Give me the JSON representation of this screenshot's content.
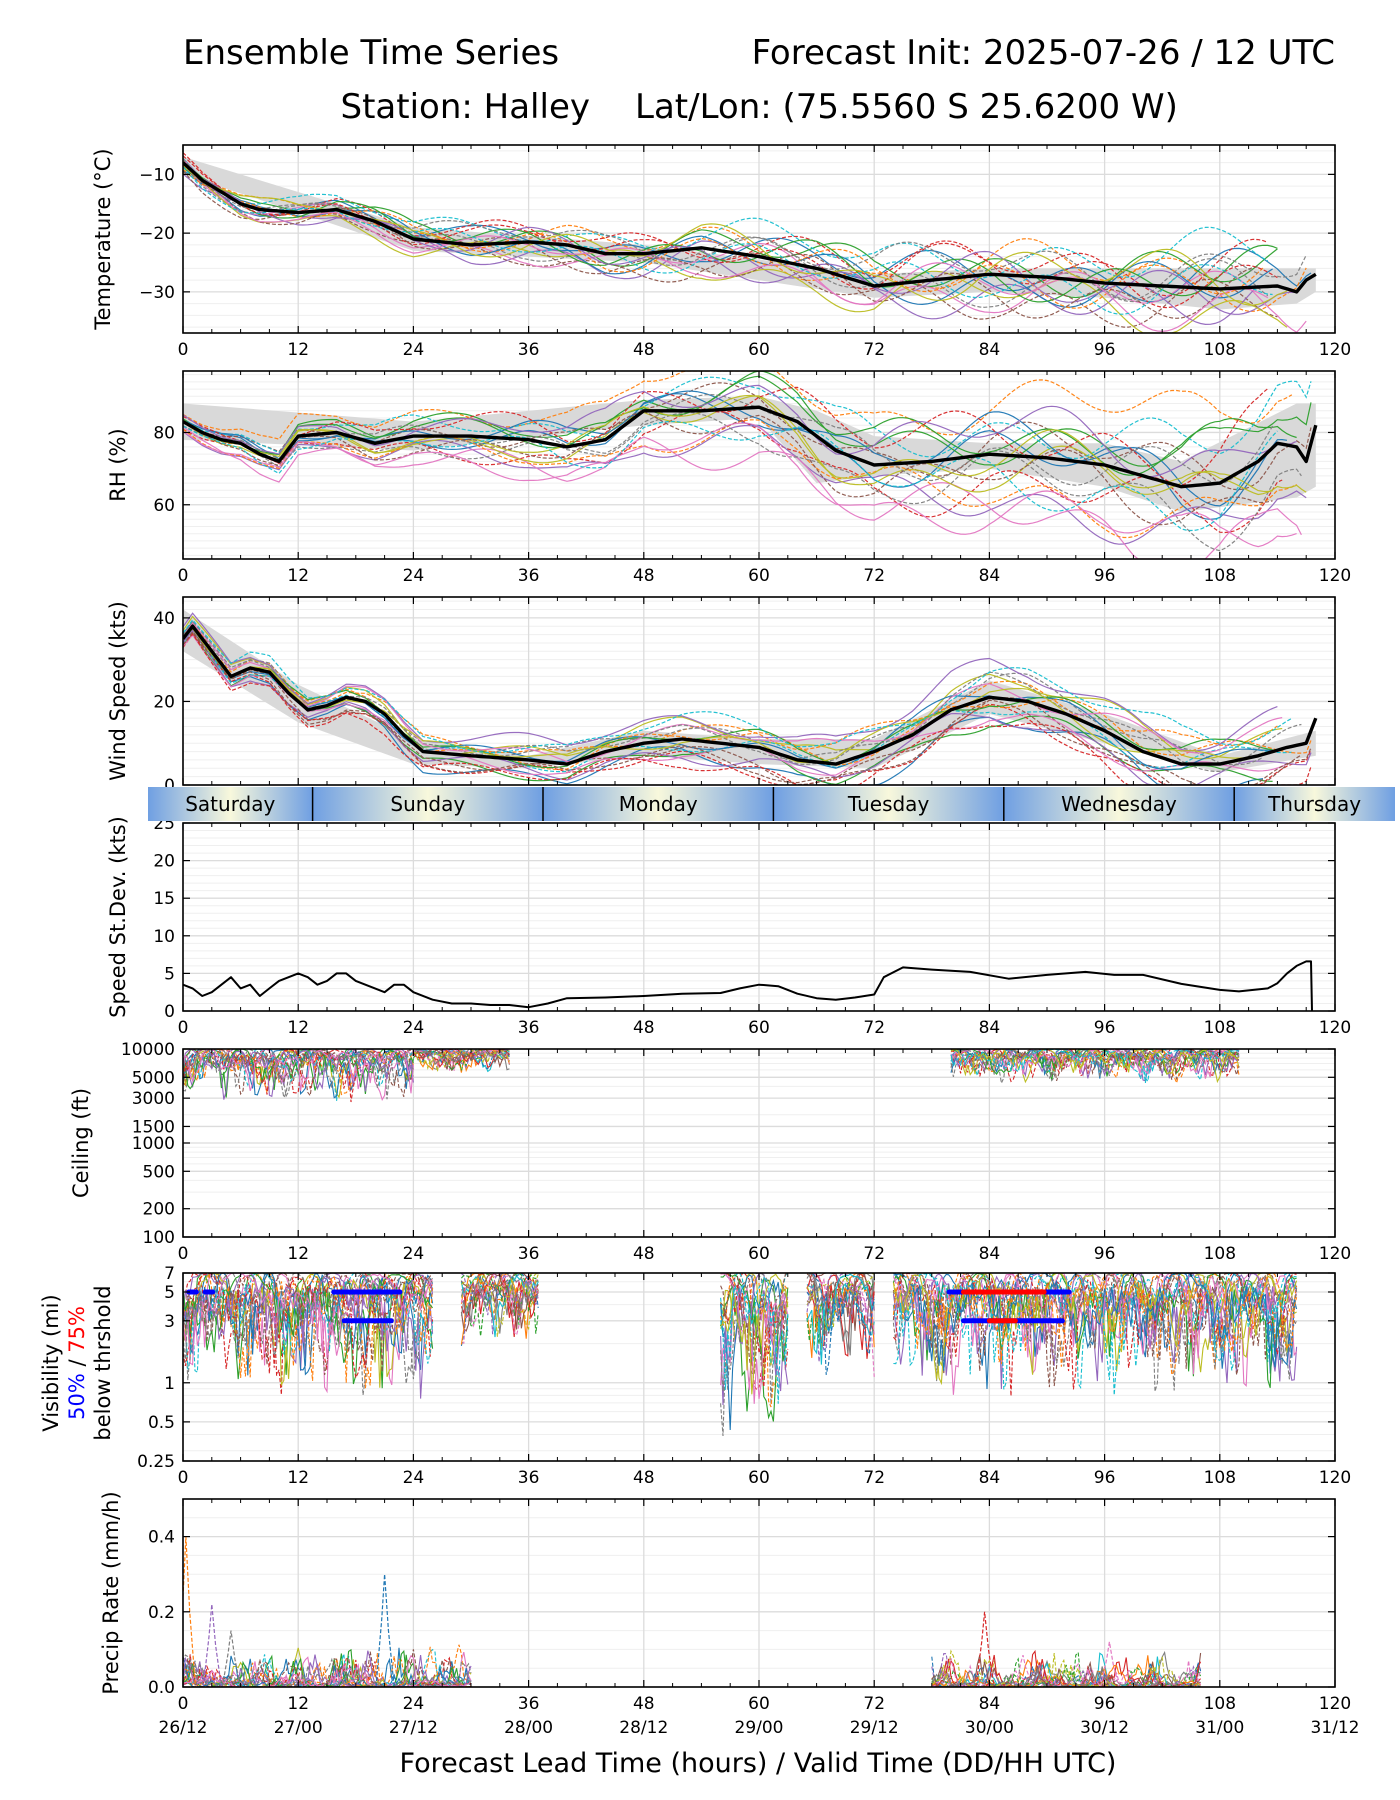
{
  "header": {
    "left_title": "Ensemble Time Series",
    "right_title": "Forecast Init: 2025-07-26 / 12 UTC",
    "station": "Station: Halley",
    "latlon": "Lat/Lon: (75.5560 S 25.6200 W)"
  },
  "xaxis": {
    "label": "Forecast Lead Time (hours) / Valid Time (DD/HH UTC)",
    "ticks": [
      0,
      12,
      24,
      36,
      48,
      60,
      72,
      84,
      96,
      108,
      120
    ],
    "valid_times": [
      "26/12",
      "27/00",
      "27/12",
      "28/00",
      "28/12",
      "29/00",
      "29/12",
      "30/00",
      "30/12",
      "31/00",
      "31/12"
    ],
    "xlim": [
      0,
      120
    ]
  },
  "day_band": {
    "days": [
      {
        "label": "Saturday",
        "start": 0,
        "end": 13.5
      },
      {
        "label": "Sunday",
        "start": 13.5,
        "end": 37.5
      },
      {
        "label": "Monday",
        "start": 37.5,
        "end": 61.5
      },
      {
        "label": "Tuesday",
        "start": 61.5,
        "end": 85.5
      },
      {
        "label": "Wednesday",
        "start": 85.5,
        "end": 109.5
      },
      {
        "label": "Thursday",
        "start": 109.5,
        "end": 120
      }
    ]
  },
  "visibility_label": {
    "line1": "Visibility (mi)",
    "pct50": "50%",
    "sep": " / ",
    "pct75": "75%",
    "line3": "below thrshold",
    "color50": "#0000ff",
    "color75": "#ff0000"
  },
  "colors": {
    "members": [
      "#1f77b4",
      "#ff7f0e",
      "#2ca02c",
      "#d62728",
      "#9467bd",
      "#8c564b",
      "#e377c2",
      "#7f7f7f",
      "#bcbd22",
      "#17becf"
    ],
    "mean": "#000000",
    "spread": "#d9d9d9",
    "threshold50": "#0000ff",
    "threshold75": "#ff0000"
  },
  "chart_data": [
    {
      "type": "line",
      "id": "temp",
      "ylabel": "Temperature (°C)",
      "ylim": [
        -37,
        -5
      ],
      "yticks": [
        -10,
        -20,
        -30
      ],
      "ytick_labels": [
        "−10",
        "−20",
        "−30"
      ],
      "grid": true,
      "mean": {
        "x": [
          0,
          2,
          4,
          6,
          8,
          12,
          16,
          20,
          24,
          30,
          36,
          40,
          44,
          48,
          54,
          60,
          66,
          70,
          72,
          78,
          84,
          90,
          96,
          102,
          108,
          114,
          116,
          117,
          118
        ],
        "y": [
          -8,
          -11,
          -13,
          -15,
          -16,
          -16.5,
          -16,
          -18,
          -21,
          -22,
          -21.5,
          -22,
          -23.5,
          -23.5,
          -22.5,
          -24,
          -26,
          -28,
          -29,
          -28,
          -27,
          -27.5,
          -28.5,
          -29,
          -29.5,
          -29,
          -30,
          -28,
          -27
        ]
      },
      "spread": {
        "x": [
          0,
          24,
          48,
          72,
          84,
          96,
          108,
          116,
          118
        ],
        "lower": [
          -10,
          -23,
          -25,
          -31,
          -30,
          -31,
          -33,
          -32,
          -30
        ],
        "upper": [
          -7,
          -19,
          -22,
          -27,
          -26,
          -26,
          -26,
          -26,
          -26
        ]
      },
      "members": {
        "n": 20,
        "amplitude": 1.2,
        "growth": 0.03
      }
    },
    {
      "type": "line",
      "id": "rh",
      "ylabel": "RH (%)",
      "ylim": [
        45,
        97
      ],
      "yticks": [
        60,
        80
      ],
      "ytick_labels": [
        "60",
        "80"
      ],
      "grid": true,
      "mean": {
        "x": [
          0,
          2,
          4,
          6,
          8,
          10,
          12,
          16,
          20,
          24,
          30,
          36,
          40,
          44,
          48,
          54,
          60,
          64,
          68,
          72,
          78,
          84,
          90,
          96,
          100,
          104,
          108,
          112,
          114,
          116,
          117,
          118
        ],
        "y": [
          83,
          80,
          78,
          77,
          74,
          72,
          79,
          80,
          77,
          79,
          79,
          78,
          76,
          78,
          86,
          86,
          87,
          83,
          75,
          71,
          72,
          74,
          73,
          71,
          68,
          65,
          66,
          72,
          77,
          76,
          72,
          82
        ]
      },
      "spread": {
        "x": [
          0,
          24,
          48,
          60,
          66,
          72,
          84,
          96,
          104,
          110,
          116,
          118
        ],
        "lower": [
          78,
          75,
          82,
          84,
          66,
          68,
          70,
          65,
          58,
          60,
          62,
          65
        ],
        "upper": [
          88,
          83,
          89,
          90,
          86,
          79,
          77,
          77,
          72,
          80,
          88,
          88
        ]
      },
      "members": {
        "n": 20,
        "amplitude": 3,
        "growth": 0.06
      }
    },
    {
      "type": "line",
      "id": "wind",
      "ylabel": "Wind Speed (kts)",
      "ylim": [
        0,
        45
      ],
      "yticks": [
        0,
        20,
        40
      ],
      "ytick_labels": [
        "0",
        "20",
        "40"
      ],
      "grid": true,
      "mean": {
        "x": [
          0,
          1,
          3,
          5,
          7,
          9,
          11,
          13,
          15,
          17,
          19,
          21,
          23,
          25,
          30,
          36,
          40,
          44,
          48,
          52,
          56,
          60,
          64,
          68,
          72,
          76,
          80,
          84,
          88,
          92,
          96,
          100,
          104,
          108,
          112,
          115,
          117,
          118
        ],
        "y": [
          35,
          38,
          32,
          26,
          28,
          27,
          22,
          18,
          19,
          21,
          20,
          17,
          12,
          8,
          7,
          6,
          5,
          8,
          10,
          11,
          10,
          9,
          6,
          5,
          8,
          12,
          18,
          21,
          20,
          17,
          13,
          8,
          5,
          5,
          7,
          9,
          10,
          16
        ]
      },
      "spread": {
        "x": [
          0,
          12,
          24,
          36,
          48,
          60,
          72,
          84,
          96,
          108,
          118
        ],
        "lower": [
          32,
          15,
          5,
          4,
          7,
          5,
          4,
          17,
          10,
          3,
          7
        ],
        "upper": [
          42,
          24,
          11,
          7,
          13,
          11,
          11,
          25,
          17,
          7,
          13
        ]
      },
      "members": {
        "n": 20,
        "amplitude": 2.5,
        "growth": 0.02
      }
    },
    {
      "type": "line",
      "id": "speed_sd",
      "ylabel": "Speed St.Dev. (kts)",
      "ylim": [
        0,
        25
      ],
      "yticks": [
        0,
        5,
        10,
        15,
        20,
        25
      ],
      "ytick_labels": [
        "0",
        "5",
        "10",
        "15",
        "20",
        "25"
      ],
      "grid": true,
      "mean": {
        "x": [
          0,
          1,
          2,
          3,
          4,
          5,
          6,
          7,
          8,
          9,
          10,
          11,
          12,
          13,
          14,
          15,
          16,
          17,
          18,
          19,
          20,
          21,
          22,
          23,
          24,
          26,
          28,
          30,
          32,
          34,
          36,
          38,
          40,
          44,
          48,
          52,
          56,
          58,
          60,
          62,
          64,
          66,
          68,
          70,
          72,
          73,
          75,
          78,
          82,
          86,
          90,
          94,
          97,
          100,
          104,
          108,
          110,
          113,
          114,
          115,
          116,
          117,
          117.5,
          117.6
        ],
        "y": [
          3.5,
          3,
          2,
          2.5,
          3.5,
          4.5,
          3,
          3.5,
          2,
          3,
          4,
          4.5,
          5,
          4.5,
          3.5,
          4,
          5,
          5,
          4,
          3.5,
          3,
          2.5,
          3.5,
          3.5,
          2.5,
          1.5,
          1,
          1,
          0.8,
          0.8,
          0.5,
          1,
          1.7,
          1.8,
          2,
          2.3,
          2.4,
          3,
          3.5,
          3.3,
          2.3,
          1.7,
          1.5,
          1.8,
          2.2,
          4.5,
          5.8,
          5.5,
          5.2,
          4.3,
          4.8,
          5.2,
          4.8,
          4.8,
          3.6,
          2.8,
          2.6,
          3,
          3.7,
          5,
          6,
          6.6,
          6.6,
          0
        ]
      },
      "spread": null,
      "members": null
    },
    {
      "type": "line",
      "id": "ceiling",
      "ylabel": "Ceiling (ft)",
      "yscale": "log",
      "ylim": [
        100,
        10000
      ],
      "yticks": [
        10000,
        5000,
        3000,
        1500,
        1000,
        500,
        200,
        100
      ],
      "ytick_labels": [
        "10000",
        "5000",
        "3000",
        "1500",
        "1000",
        "500",
        "200",
        "100"
      ],
      "grid": true,
      "member_segments": [
        {
          "x0": 0,
          "x1": 24,
          "low": 2700,
          "high": 10000
        },
        {
          "x0": 24,
          "x1": 34,
          "low": 5500,
          "high": 10000
        },
        {
          "x0": 80,
          "x1": 110,
          "low": 4200,
          "high": 10000
        }
      ]
    },
    {
      "type": "line",
      "id": "visibility",
      "yscale": "log",
      "ylim": [
        0.25,
        7
      ],
      "yticks": [
        7,
        5,
        3,
        1,
        0.5,
        0.25
      ],
      "ytick_labels": [
        "7",
        "5",
        "3",
        "1",
        "0.5",
        "0.25"
      ],
      "grid": true,
      "member_segments": [
        {
          "x0": 0,
          "x1": 26,
          "low": 0.7,
          "high": 7
        },
        {
          "x0": 29,
          "x1": 37,
          "low": 1.8,
          "high": 7
        },
        {
          "x0": 56,
          "x1": 63,
          "low": 0.35,
          "high": 7
        },
        {
          "x0": 65,
          "x1": 72,
          "low": 1.0,
          "high": 7
        },
        {
          "x0": 74,
          "x1": 116,
          "low": 0.75,
          "high": 7
        }
      ],
      "threshold_bars": [
        {
          "level": 5,
          "x0": 0.6,
          "x1": 1.4,
          "color": "blue"
        },
        {
          "level": 5,
          "x0": 2.3,
          "x1": 3.1,
          "color": "blue"
        },
        {
          "level": 5,
          "x0": 15.7,
          "x1": 22.6,
          "color": "blue"
        },
        {
          "level": 3,
          "x0": 16.8,
          "x1": 21.7,
          "color": "blue"
        },
        {
          "level": 5,
          "x0": 79.8,
          "x1": 92.3,
          "color": "blue"
        },
        {
          "level": 5,
          "x0": 81.3,
          "x1": 89.7,
          "color": "red"
        },
        {
          "level": 3,
          "x0": 81.3,
          "x1": 91.6,
          "color": "blue"
        },
        {
          "level": 3,
          "x0": 84.0,
          "x1": 86.7,
          "color": "red"
        }
      ]
    },
    {
      "type": "line",
      "id": "precip",
      "ylabel": "Precip Rate (mm/h)",
      "ylim": [
        0,
        0.5
      ],
      "yticks": [
        0.0,
        0.2,
        0.4
      ],
      "ytick_labels": [
        "0.0",
        "0.2",
        "0.4"
      ],
      "grid": true,
      "member_segments": [
        {
          "x0": 0,
          "x1": 30,
          "low": 0,
          "high": 0.12
        },
        {
          "x0": 78,
          "x1": 106,
          "low": 0,
          "high": 0.1
        }
      ],
      "peaks": [
        {
          "x": 0.3,
          "y": 0.4
        },
        {
          "x": 3,
          "y": 0.22
        },
        {
          "x": 5,
          "y": 0.15
        },
        {
          "x": 21,
          "y": 0.3
        },
        {
          "x": 83.5,
          "y": 0.2
        },
        {
          "x": 96.5,
          "y": 0.12
        }
      ]
    }
  ]
}
